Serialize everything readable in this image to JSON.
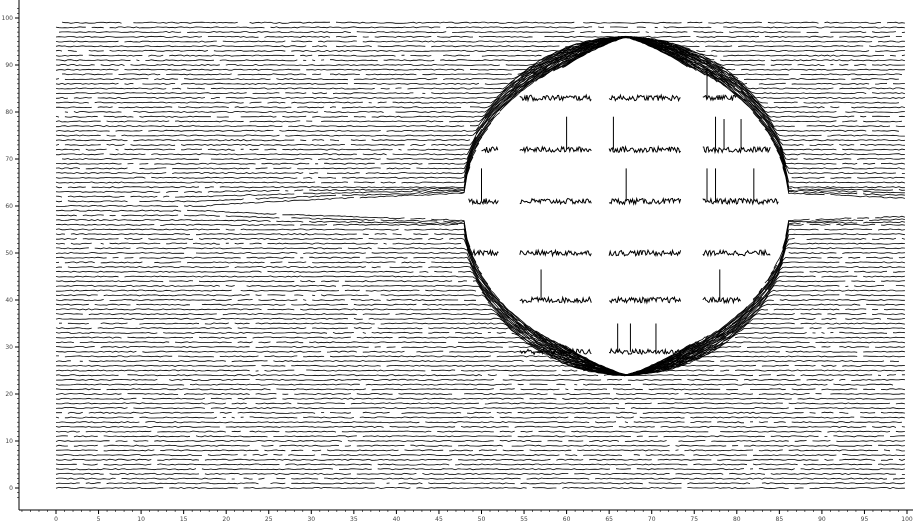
{
  "chart_data": {
    "type": "line",
    "title": "",
    "xlabel": "",
    "ylabel": "",
    "xlim": [
      -4,
      100
    ],
    "ylim": [
      -2,
      102
    ],
    "x_ticks": [
      0,
      5,
      10,
      15,
      20,
      25,
      30,
      35,
      40,
      45,
      50,
      55,
      60,
      65,
      70,
      75,
      80,
      85,
      90,
      95,
      100
    ],
    "y_ticks": [
      0,
      10,
      20,
      30,
      40,
      50,
      60,
      70,
      80,
      90,
      100
    ],
    "trace_x_range": [
      0,
      100
    ],
    "trace_y_range": [
      0,
      99
    ],
    "trace_spacing": 1,
    "lens": {
      "center": [
        67,
        60
      ],
      "radius_x": 19,
      "radius_y": 32
    },
    "inner_segments": [
      {
        "y": 83,
        "x_start": 54.5,
        "x_end": 63
      },
      {
        "y": 83,
        "x_start": 65,
        "x_end": 73.5
      },
      {
        "y": 83,
        "x_start": 76,
        "x_end": 80
      },
      {
        "y": 72,
        "x_start": 50,
        "x_end": 52
      },
      {
        "y": 72,
        "x_start": 54.5,
        "x_end": 63
      },
      {
        "y": 72,
        "x_start": 65,
        "x_end": 73.5
      },
      {
        "y": 72,
        "x_start": 76,
        "x_end": 84
      },
      {
        "y": 61,
        "x_start": 48.5,
        "x_end": 52
      },
      {
        "y": 61,
        "x_start": 54.5,
        "x_end": 63
      },
      {
        "y": 61,
        "x_start": 65,
        "x_end": 73.5
      },
      {
        "y": 61,
        "x_start": 76,
        "x_end": 85
      },
      {
        "y": 50,
        "x_start": 49,
        "x_end": 52
      },
      {
        "y": 50,
        "x_start": 54.5,
        "x_end": 63
      },
      {
        "y": 50,
        "x_start": 65,
        "x_end": 73.5
      },
      {
        "y": 50,
        "x_start": 76,
        "x_end": 84
      },
      {
        "y": 40,
        "x_start": 54.5,
        "x_end": 63
      },
      {
        "y": 40,
        "x_start": 65,
        "x_end": 73.5
      },
      {
        "y": 40,
        "x_start": 76,
        "x_end": 80.5
      },
      {
        "y": 29,
        "x_start": 54.5,
        "x_end": 63
      },
      {
        "y": 29,
        "x_start": 65,
        "x_end": 73.5
      }
    ],
    "spikes": [
      {
        "x": 76.5,
        "y": 83,
        "height": 6.5
      },
      {
        "x": 60.0,
        "y": 72,
        "height": 7.0
      },
      {
        "x": 65.5,
        "y": 72,
        "height": 7.0
      },
      {
        "x": 77.5,
        "y": 72,
        "height": 7.0
      },
      {
        "x": 78.5,
        "y": 72,
        "height": 6.5
      },
      {
        "x": 80.5,
        "y": 72,
        "height": 6.5
      },
      {
        "x": 50.0,
        "y": 61,
        "height": 7.0
      },
      {
        "x": 67.0,
        "y": 61,
        "height": 7.0
      },
      {
        "x": 76.5,
        "y": 61,
        "height": 7.0
      },
      {
        "x": 77.5,
        "y": 61,
        "height": 7.0
      },
      {
        "x": 82.0,
        "y": 61,
        "height": 7.0
      },
      {
        "x": 57.0,
        "y": 40,
        "height": 6.5
      },
      {
        "x": 78.0,
        "y": 40,
        "height": 6.5
      },
      {
        "x": 66.0,
        "y": 29,
        "height": 6.0
      },
      {
        "x": 67.5,
        "y": 29,
        "height": 6.0
      },
      {
        "x": 70.5,
        "y": 29,
        "height": 6.0
      }
    ]
  }
}
